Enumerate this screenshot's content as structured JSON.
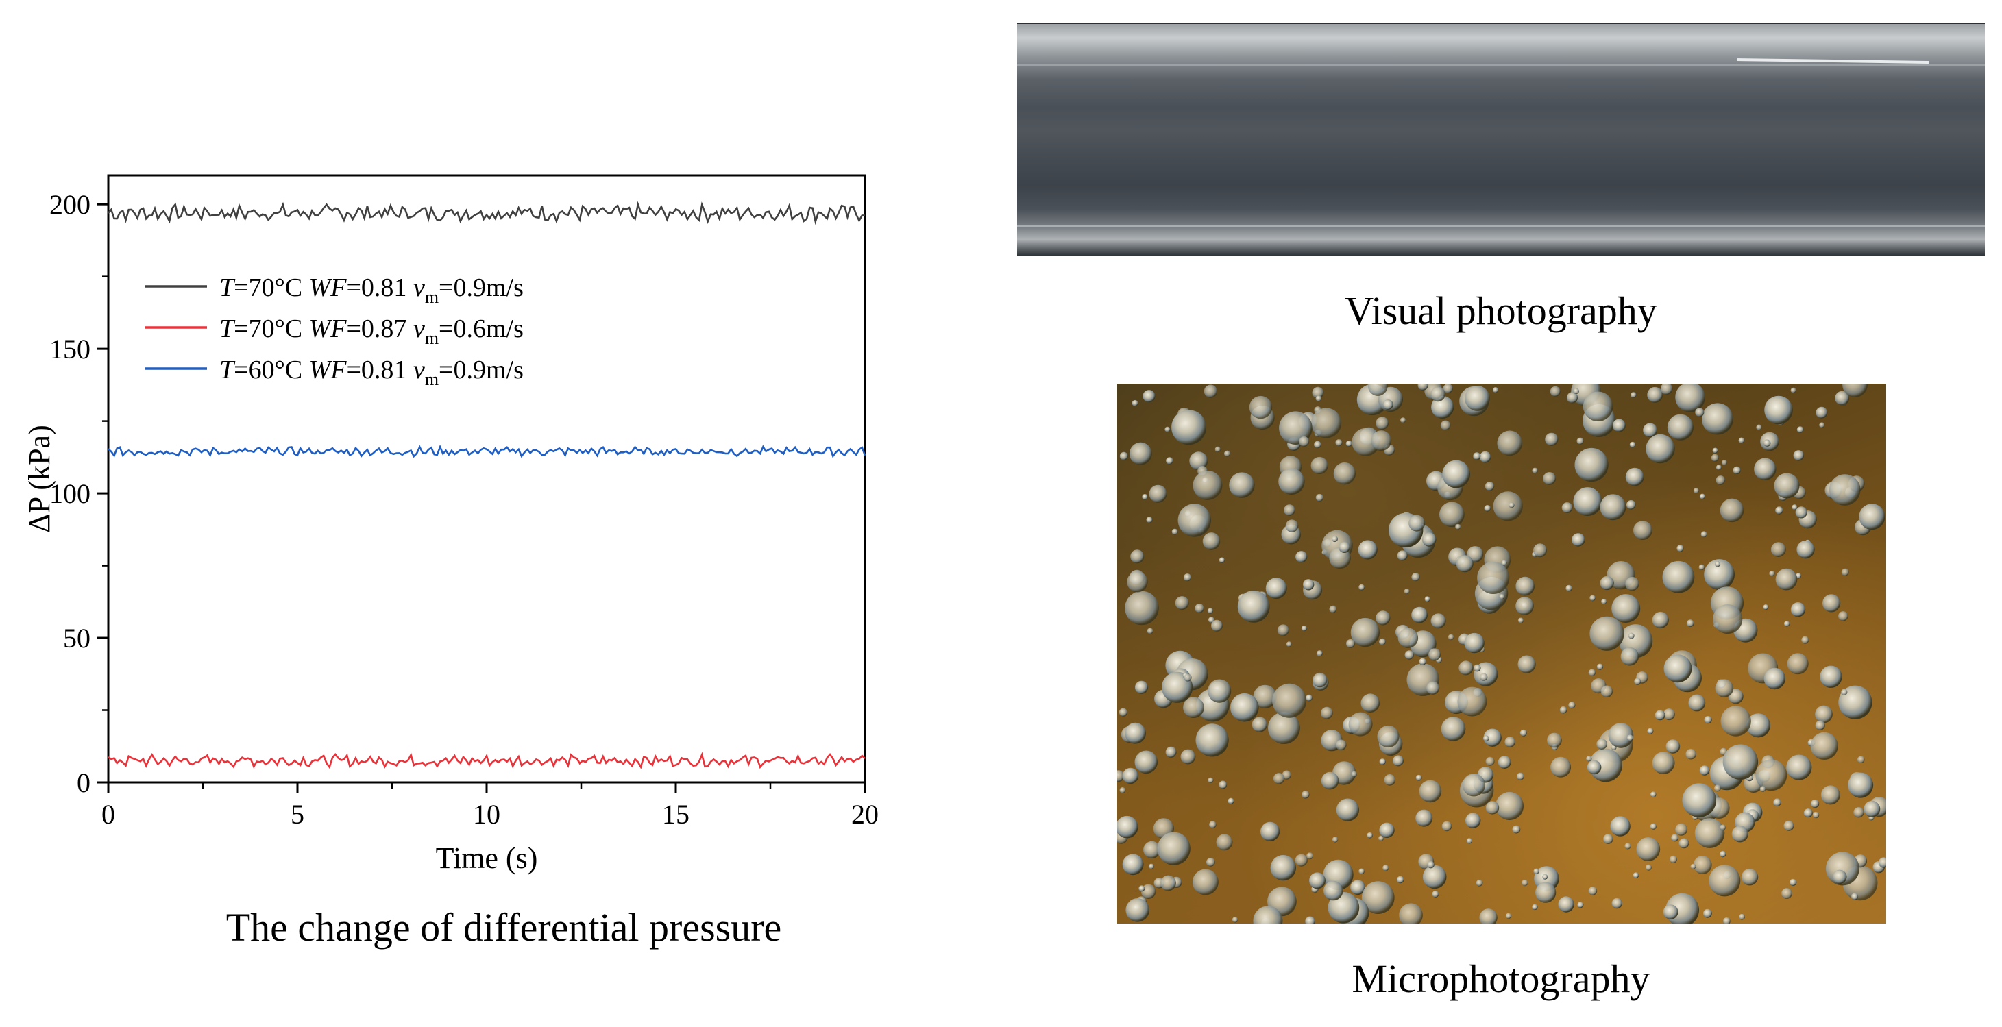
{
  "chart_data": {
    "type": "line",
    "xlabel": "Time (s)",
    "ylabel": "ΔP (kPa)",
    "xlim": [
      0,
      20
    ],
    "ylim": [
      0,
      210
    ],
    "x_ticks": [
      0,
      5,
      10,
      15,
      20
    ],
    "y_ticks": [
      0,
      50,
      100,
      150,
      200
    ],
    "grid": false,
    "legend_position": "upper-left",
    "series": [
      {
        "name": "T=70°C WF=0.81 vm=0.9m/s",
        "legend_parts": [
          "T",
          "=70°C ",
          "WF",
          "=0.81 ",
          "v",
          "m",
          "=0.9m/s"
        ],
        "color": "#404040",
        "mean": 197,
        "noise": 2.2
      },
      {
        "name": "T=70°C WF=0.87 vm=0.6m/s",
        "legend_parts": [
          "T",
          "=70°C ",
          "WF",
          "=0.87 ",
          "v",
          "m",
          "=0.6m/s"
        ],
        "color": "#e8333a",
        "mean": 7.5,
        "noise": 1.6
      },
      {
        "name": "T=60°C WF=0.81 vm=0.9m/s",
        "legend_parts": [
          "T",
          "=60°C ",
          "WF",
          "=0.81 ",
          "v",
          "m",
          "=0.9m/s"
        ],
        "color": "#1f5fc4",
        "mean": 114.5,
        "noise": 1.2
      }
    ]
  },
  "captions": {
    "chart": "The change of differential pressure",
    "visual": "Visual photography",
    "micro": "Microphotography"
  }
}
